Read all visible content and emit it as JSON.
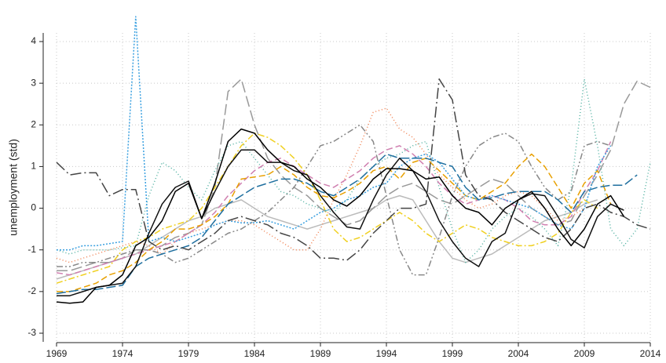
{
  "chart_data": {
    "type": "line",
    "ylabel": "unemployment (std)",
    "x": [
      1969,
      1970,
      1971,
      1972,
      1973,
      1974,
      1975,
      1976,
      1977,
      1978,
      1979,
      1980,
      1981,
      1982,
      1983,
      1984,
      1985,
      1986,
      1987,
      1988,
      1989,
      1990,
      1991,
      1992,
      1993,
      1994,
      1995,
      1996,
      1997,
      1998,
      1999,
      2000,
      2001,
      2002,
      2003,
      2004,
      2005,
      2006,
      2007,
      2008,
      2009,
      2010,
      2011,
      2012,
      2013,
      2014
    ],
    "xlim": [
      1969,
      2014
    ],
    "xticks": [
      1969,
      1974,
      1979,
      1984,
      1989,
      1994,
      1999,
      2004,
      2009,
      2014
    ],
    "ylim": [
      -3.2,
      4.6
    ],
    "yticks": [
      -3,
      -2,
      -1,
      0,
      1,
      2,
      3,
      4
    ],
    "grid": true,
    "series": [
      {
        "color": "#bbbbbb",
        "dash": "none",
        "values": [
          -1.7,
          -1.6,
          -1.5,
          -1.4,
          -1.3,
          -1.2,
          -1.1,
          -0.9,
          -0.7,
          -0.5,
          -0.3,
          -0.2,
          0.0,
          0.1,
          0.2,
          0.0,
          -0.2,
          -0.3,
          -0.4,
          -0.5,
          -0.4,
          -0.3,
          -0.2,
          -0.1,
          0.0,
          0.2,
          0.3,
          0.2,
          -0.3,
          -0.8,
          -1.2,
          -1.3,
          -1.2,
          -1.1,
          -0.9,
          -0.7,
          -0.5,
          -0.3,
          -0.2,
          -0.1,
          0.1,
          0.2,
          null,
          null,
          null,
          null
        ]
      },
      {
        "color": "#999999",
        "dash": "14,5",
        "values": [
          -1.5,
          -1.5,
          -1.4,
          -1.3,
          -1.3,
          -1.2,
          -1.0,
          -1.0,
          -0.9,
          -0.7,
          -0.6,
          -0.4,
          0.5,
          2.8,
          3.1,
          2.0,
          1.2,
          0.8,
          0.5,
          0.3,
          0.0,
          -0.2,
          -0.4,
          -0.3,
          0.0,
          0.3,
          0.5,
          0.6,
          0.4,
          0.2,
          0.1,
          0.3,
          0.5,
          0.7,
          0.6,
          0.3,
          0.0,
          -0.2,
          -0.4,
          -0.3,
          0.3,
          0.8,
          1.4,
          2.5,
          3.05,
          2.9
        ]
      },
      {
        "color": "#888888",
        "dash": "8,3,2,3,2,3",
        "values": [
          -1.4,
          -1.4,
          -1.3,
          -1.3,
          -1.2,
          -1.1,
          -1.0,
          -1.0,
          -1.1,
          -1.3,
          -1.2,
          -1.0,
          -0.8,
          -0.6,
          -0.5,
          -0.3,
          -0.1,
          0.2,
          0.5,
          1.0,
          1.5,
          1.6,
          1.8,
          2.0,
          1.6,
          0.3,
          -1.0,
          -1.6,
          -1.6,
          -0.7,
          0.3,
          1.0,
          1.5,
          1.7,
          1.8,
          1.6,
          1.0,
          0.5,
          0.2,
          0.4,
          1.5,
          1.6,
          1.5,
          null,
          null,
          null
        ]
      },
      {
        "color": "#f08050",
        "dash": "1,3",
        "values": [
          -1.2,
          -1.3,
          -1.2,
          -1.1,
          -1.0,
          -0.9,
          -0.8,
          -0.9,
          -1.1,
          -0.8,
          -0.6,
          -0.5,
          -0.4,
          -0.3,
          -0.3,
          -0.4,
          -0.6,
          -0.8,
          -1.0,
          -1.0,
          -0.5,
          0.2,
          0.8,
          1.5,
          2.3,
          2.4,
          1.9,
          1.7,
          1.3,
          0.8,
          0.5,
          0.2,
          0.0,
          0.1,
          0.3,
          0.4,
          0.3,
          0.0,
          -0.3,
          -0.2,
          0.0,
          null,
          null,
          null,
          null,
          null
        ]
      },
      {
        "color": "#4fb0a0",
        "dash": "1,3",
        "values": [
          -1.0,
          -1.1,
          -1.0,
          -1.0,
          -1.0,
          -0.95,
          -0.9,
          0.3,
          1.1,
          0.9,
          0.5,
          0.2,
          0.9,
          1.5,
          1.6,
          1.2,
          0.8,
          0.4,
          0.3,
          0.1,
          0.0,
          -0.1,
          0.2,
          0.7,
          1.0,
          1.2,
          1.3,
          1.5,
          1.6,
          0.5,
          -0.5,
          -1.3,
          -1.0,
          -0.5,
          -0.2,
          0.0,
          -0.2,
          -0.5,
          -0.9,
          0.5,
          3.1,
          1.5,
          -0.5,
          -0.9,
          -0.5,
          1.1
        ]
      },
      {
        "color": "#f0d020",
        "dash": "8,3,2,3",
        "values": [
          -1.8,
          -1.7,
          -1.6,
          -1.5,
          -1.4,
          -1.0,
          -0.8,
          -0.7,
          -0.5,
          -0.4,
          -0.3,
          0.0,
          0.5,
          1.0,
          1.5,
          1.8,
          1.7,
          1.5,
          1.2,
          0.8,
          0.2,
          -0.5,
          -0.8,
          -0.7,
          -0.5,
          -0.3,
          -0.1,
          -0.3,
          -0.6,
          -0.8,
          -0.6,
          -0.4,
          -0.5,
          -0.7,
          -0.8,
          -0.9,
          -0.9,
          -0.8,
          -0.6,
          -0.1,
          0.2,
          0.0,
          null,
          null,
          null,
          null
        ]
      },
      {
        "color": "#d080b0",
        "dash": "8,4",
        "values": [
          -1.55,
          -1.6,
          -1.5,
          -1.4,
          -1.3,
          -1.2,
          -1.1,
          -1.0,
          -0.9,
          -0.8,
          -0.6,
          -0.4,
          -0.1,
          0.3,
          0.6,
          0.9,
          1.1,
          1.2,
          1.0,
          0.8,
          0.6,
          0.5,
          0.7,
          0.9,
          1.2,
          1.4,
          1.5,
          1.3,
          1.0,
          0.6,
          0.3,
          0.1,
          0.2,
          0.3,
          0.2,
          0.0,
          -0.3,
          -0.4,
          -0.4,
          -0.2,
          0.4,
          0.9,
          1.6,
          null,
          null,
          null
        ]
      },
      {
        "color": "#e8a000",
        "dash": "8,4",
        "values": [
          -2.0,
          -2.0,
          -1.9,
          -1.8,
          -1.6,
          -1.5,
          -1.3,
          -1.0,
          -0.8,
          -0.5,
          -0.5,
          -0.4,
          -0.2,
          0.1,
          0.7,
          0.75,
          0.8,
          1.0,
          0.8,
          0.5,
          0.3,
          0.25,
          0.4,
          0.6,
          0.9,
          1.0,
          0.7,
          1.1,
          1.2,
          0.9,
          0.6,
          0.3,
          0.2,
          0.4,
          0.6,
          1.0,
          1.3,
          1.0,
          0.5,
          0.0,
          0.6,
          0.9,
          0.1,
          null,
          null,
          null
        ]
      },
      {
        "color": "#3aa0e0",
        "dash": "2,2",
        "values": [
          -1.0,
          -1.0,
          -0.9,
          -0.9,
          -0.85,
          -0.8,
          4.6,
          -0.8,
          -0.7,
          -0.8,
          -0.7,
          -0.6,
          -0.4,
          -0.3,
          -0.35,
          -0.35,
          -0.3,
          -0.4,
          -0.5,
          -0.3,
          -0.1,
          0.0,
          0.2,
          0.3,
          0.5,
          0.6,
          1.0,
          1.2,
          1.3,
          1.1,
          0.7,
          0.3,
          0.2,
          0.3,
          0.2,
          0.1,
          0.0,
          -0.2,
          -0.4,
          -0.5,
          0.0,
          1.0,
          1.5,
          null,
          null,
          null
        ]
      },
      {
        "color": "#1f6f9f",
        "dash": "12,4",
        "values": [
          -2.05,
          -2.0,
          -1.95,
          -1.95,
          -1.9,
          -1.85,
          -1.4,
          -1.2,
          -1.1,
          -1.0,
          -0.9,
          -0.7,
          -0.3,
          0.1,
          0.3,
          0.5,
          0.6,
          0.7,
          0.7,
          0.6,
          0.4,
          0.3,
          0.5,
          0.7,
          1.0,
          1.3,
          1.2,
          1.2,
          1.2,
          1.1,
          1.0,
          0.5,
          0.2,
          0.25,
          0.35,
          0.4,
          0.4,
          0.4,
          0.2,
          -0.1,
          0.4,
          0.5,
          0.55,
          0.55,
          0.8,
          null
        ]
      },
      {
        "color": "#444444",
        "dash": "14,4,2,4",
        "values": [
          1.1,
          0.8,
          0.85,
          0.85,
          0.3,
          0.45,
          0.45,
          -0.8,
          -1.0,
          -0.9,
          -1.0,
          -0.8,
          -0.6,
          -0.3,
          -0.2,
          -0.3,
          -0.4,
          -0.6,
          -0.7,
          -0.9,
          -1.2,
          -1.2,
          -1.25,
          -1.0,
          -0.6,
          -0.3,
          0.0,
          0.0,
          0.1,
          3.1,
          2.6,
          0.8,
          0.3,
          0.2,
          -0.1,
          -0.3,
          -0.5,
          -0.7,
          -0.8,
          -0.5,
          0.0,
          0.1,
          -0.1,
          -0.2,
          -0.4,
          -0.5
        ]
      },
      {
        "color": "#111111",
        "dash": "none",
        "values": [
          -2.1,
          -2.1,
          -2.0,
          -1.9,
          -1.85,
          -1.8,
          -1.4,
          -0.6,
          0.1,
          0.5,
          0.65,
          -0.25,
          0.4,
          1.0,
          1.4,
          1.4,
          1.1,
          1.1,
          0.9,
          0.8,
          0.3,
          -0.1,
          -0.45,
          -0.5,
          0.2,
          0.8,
          1.2,
          0.9,
          0.4,
          -0.3,
          -0.8,
          -1.2,
          -1.4,
          -0.8,
          -0.6,
          0.2,
          0.35,
          0.3,
          -0.2,
          -0.75,
          -0.95,
          -0.2,
          0.1,
          -0.05,
          null,
          null
        ]
      },
      {
        "color": "#000000",
        "dash": "none",
        "values": [
          -2.25,
          -2.28,
          -2.25,
          -1.9,
          -1.85,
          -1.6,
          -0.9,
          -0.7,
          -0.3,
          0.4,
          0.6,
          -0.25,
          0.6,
          1.6,
          1.9,
          1.8,
          1.4,
          1.1,
          1.0,
          0.7,
          0.5,
          0.2,
          0.05,
          0.3,
          0.7,
          0.95,
          0.95,
          0.9,
          0.7,
          0.75,
          0.3,
          0.0,
          -0.1,
          -0.4,
          0.0,
          0.2,
          0.4,
          0.0,
          -0.5,
          -0.9,
          -0.5,
          0.1,
          0.3,
          -0.2,
          null,
          null
        ]
      }
    ]
  }
}
